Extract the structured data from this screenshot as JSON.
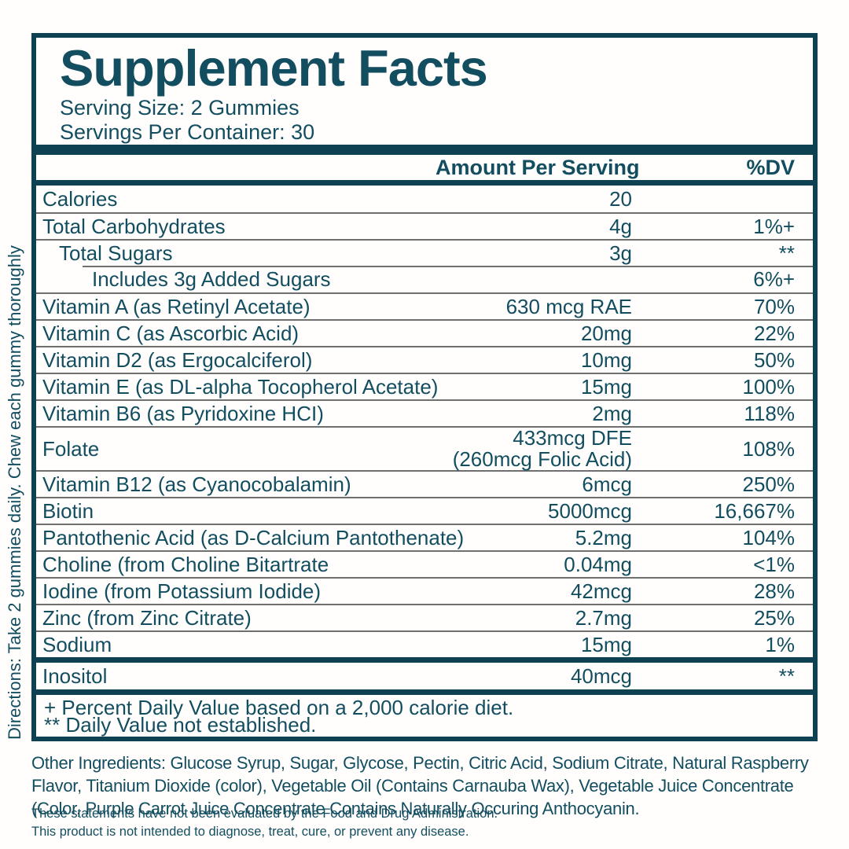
{
  "colors": {
    "teal_text": "#134e60",
    "teal_dark": "#0e4152",
    "line_gray": "#6f6f6f",
    "background": "#fffefd"
  },
  "directions": "Directions: Take 2 gummies daily. Chew each gummy thoroughly",
  "header": {
    "title": "Supplement Facts",
    "serving_size": "Serving Size: 2 Gummies",
    "servings_per_container": "Servings Per Container: 30"
  },
  "columns": {
    "amount": "Amount Per Serving",
    "dv": "%DV"
  },
  "table": {
    "rows": [
      {
        "label": "Calories",
        "amount": "20",
        "dv": "",
        "indent": 0
      },
      {
        "label": "Total Carbohydrates",
        "amount": "4g",
        "dv": "1%+",
        "indent": 0
      },
      {
        "label": "Total Sugars",
        "amount": "3g",
        "dv": "**",
        "indent": 1
      },
      {
        "label": "Includes 3g Added Sugars",
        "amount": "",
        "dv": "6%+",
        "indent": 2,
        "partial_top_border": true
      },
      {
        "label": "Vitamin A (as Retinyl Acetate)",
        "amount": "630 mcg RAE",
        "dv": "70%",
        "indent": 0
      },
      {
        "label": "Vitamin C (as Ascorbic Acid)",
        "amount": "20mg",
        "dv": "22%",
        "indent": 0
      },
      {
        "label": "Vitamin D2 (as Ergocalciferol)",
        "amount": "10mg",
        "dv": "50%",
        "indent": 0
      },
      {
        "label": "Vitamin E (as DL-alpha Tocopherol Acetate)",
        "amount": "15mg",
        "dv": "100%",
        "indent": 0
      },
      {
        "label": "Vitamin B6 (as Pyridoxine HCI)",
        "amount": "2mg",
        "dv": "118%",
        "indent": 0
      },
      {
        "label": "Folate",
        "amount": "433mcg DFE\n(260mcg Folic Acid)",
        "dv": "108%",
        "indent": 0
      },
      {
        "label": "Vitamin B12 (as Cyanocobalamin)",
        "amount": "6mcg",
        "dv": "250%",
        "indent": 0
      },
      {
        "label": "Biotin",
        "amount": "5000mcg",
        "dv": "16,667%",
        "indent": 0
      },
      {
        "label": "Pantothenic Acid (as D-Calcium Pantothenate)",
        "amount": "5.2mg",
        "dv": "104%",
        "indent": 0
      },
      {
        "label": "Choline (from Choline Bitartrate",
        "amount": "0.04mg",
        "dv": "<1%",
        "indent": 0
      },
      {
        "label": "Iodine (from Potassium Iodide)",
        "amount": "42mcg",
        "dv": "28%",
        "indent": 0
      },
      {
        "label": "Zinc (from Zinc Citrate)",
        "amount": "2.7mg",
        "dv": "25%",
        "indent": 0
      },
      {
        "label": "Sodium",
        "amount": "15mg",
        "dv": "1%",
        "indent": 0
      }
    ],
    "separate_rows": [
      {
        "label": "Inositol",
        "amount": "40mcg",
        "dv": "**",
        "indent": 0
      }
    ]
  },
  "footnotes": [
    "+ Percent Daily Value based on a 2,000 calorie diet.",
    "** Daily Value not established."
  ],
  "other_ingredients": "Other Ingredients: Glucose Syrup, Sugar, Glycose, Pectin, Citric Acid, Sodium Citrate, Natural Raspberry Flavor, Titanium Dioxide (color), Vegetable Oil (Contains Carnauba Wax), Vegetable Juice Concentrate (Color, Purple Carrot Juice Concentrate Contains Naturally Occuring Anthocyanin.",
  "disclaimers": [
    "These statements have not been evaluated by the Food and Drug Administration.",
    "This product is not intended to diagnose, treat, cure, or prevent any disease."
  ]
}
